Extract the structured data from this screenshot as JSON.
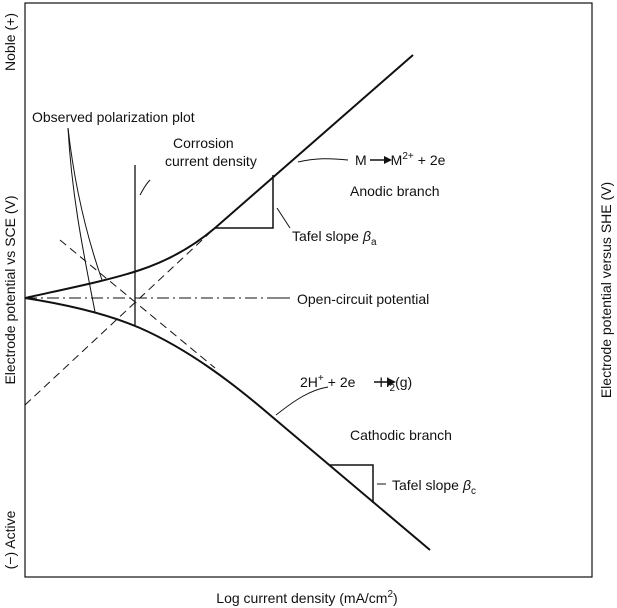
{
  "axes": {
    "left_top": "Noble (+)",
    "left": "Electrode potential vs SCE (V)",
    "left_bottom": "(−) Active",
    "right": "Electrode potential versus SHE (V)",
    "bottom": {
      "text": "Log current density (mA/cm",
      "sup": "2",
      "end": ")"
    }
  },
  "labels": {
    "observed": "Observed polarization plot",
    "corrosion_1": "Corrosion",
    "corrosion_2": "current density",
    "anodic_reaction": {
      "reactant": "M",
      "product": "M",
      "charge": "2+",
      "rest": "+ 2e"
    },
    "anodic_branch": "Anodic branch",
    "tafel_a": {
      "text": "Tafel slope",
      "symbol": "β",
      "subscript": "a"
    },
    "ocp": "Open-circuit potential",
    "cathodic_reaction": {
      "r1": "2H",
      "r1_charge": "+",
      "r2": "+ 2e",
      "product": "H",
      "product_sub": "2",
      "product_end": "(g)"
    },
    "cathodic_branch": "Cathodic branch",
    "tafel_c": {
      "text": "Tafel slope",
      "symbol": "β",
      "subscript": "c"
    }
  }
}
